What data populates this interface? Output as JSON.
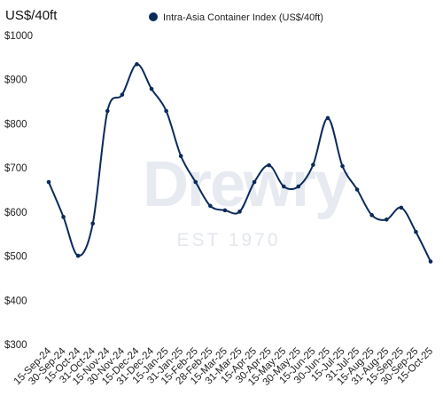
{
  "chart_data": {
    "type": "line",
    "unit_label": "US$/40ft",
    "legend_position": "top",
    "grid": false,
    "ylim": [
      300,
      1000
    ],
    "yticks": [
      "$1000",
      "$900",
      "$800",
      "$700",
      "$600",
      "$500",
      "$400",
      "$300"
    ],
    "ytick_values": [
      1000,
      900,
      800,
      700,
      600,
      500,
      400,
      300
    ],
    "categories": [
      "15-Sep-24",
      "30-Sep-24",
      "15-Oct-24",
      "31-Oct-24",
      "15-Nov-24",
      "30-Nov-24",
      "15-Dec-24",
      "31-Dec-24",
      "15-Jan-25",
      "31-Jan-25",
      "15-Feb-25",
      "28-Feb-25",
      "15-Mar-25",
      "31-Mar-25",
      "15-Apr-25",
      "30-Apr-25",
      "15-May-25",
      "30-May-25",
      "15-Jun-25",
      "30-Jun-25",
      "15-Jul-25",
      "31-Jul-25",
      "15-Aug-25",
      "31-Aug-25",
      "15-Sep-25",
      "30-Sep-25",
      "15-Oct-25"
    ],
    "series": [
      {
        "name": "Intra-Asia Container Index (US$/40ft)",
        "color": "#0b2a5b",
        "values": [
          668,
          589,
          501,
          574,
          829,
          866,
          935,
          879,
          829,
          727,
          668,
          614,
          604,
          601,
          668,
          706,
          658,
          658,
          707,
          813,
          704,
          651,
          593,
          583,
          610,
          555,
          488
        ]
      }
    ]
  },
  "watermark": {
    "brand": "Drewry",
    "tagline": "EST 1970"
  }
}
